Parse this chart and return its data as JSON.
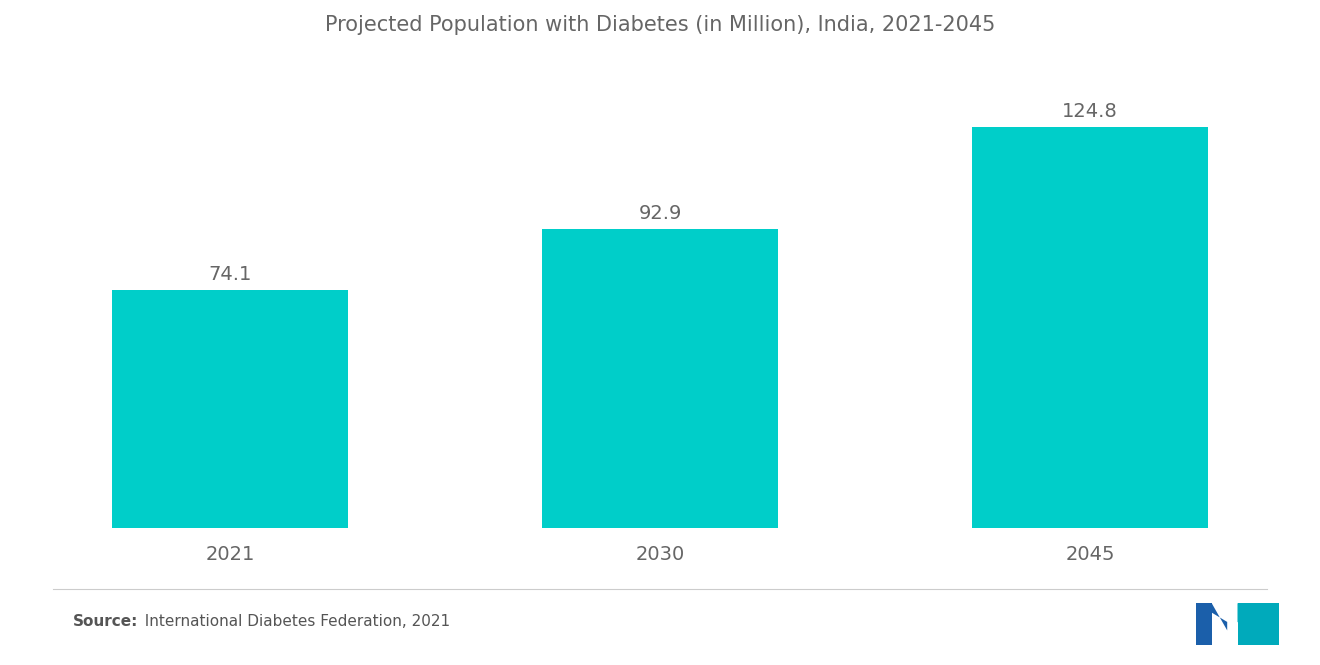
{
  "title": "Projected Population with Diabetes (in Million), India, 2021-2045",
  "categories": [
    "2021",
    "2030",
    "2045"
  ],
  "values": [
    74.1,
    92.9,
    124.8
  ],
  "bar_color": "#00CEC9",
  "background_color": "#FFFFFF",
  "label_fontsize": 14,
  "title_fontsize": 15,
  "tick_fontsize": 14,
  "source_bold": "Source:",
  "source_normal": "  International Diabetes Federation, 2021",
  "ylim": [
    0,
    145
  ],
  "bar_width": 0.55,
  "xlim": [
    -0.5,
    2.5
  ],
  "label_color": "#666666",
  "tick_color": "#666666",
  "line_color": "#CCCCCC",
  "logo_left_color": "#1B5FAA",
  "logo_right_color": "#00AABB"
}
